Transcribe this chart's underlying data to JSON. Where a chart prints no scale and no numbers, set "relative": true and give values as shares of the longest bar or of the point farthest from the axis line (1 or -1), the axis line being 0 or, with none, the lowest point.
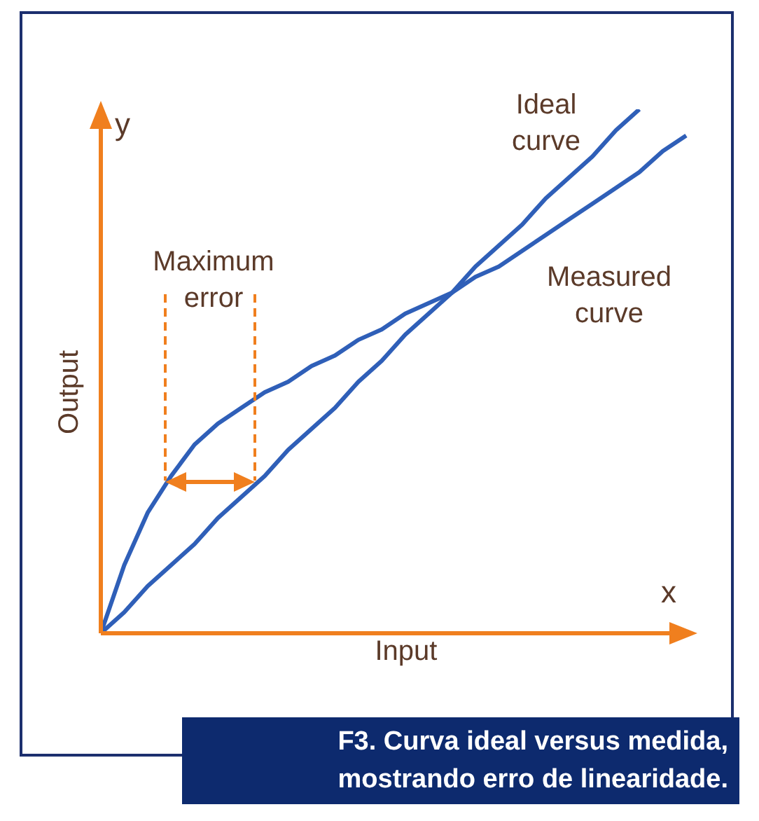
{
  "chart_data": {
    "type": "line",
    "relative": true,
    "xlabel": "Input",
    "ylabel": "Output",
    "legend": false,
    "grid": false,
    "marker": "none",
    "line_style": "solid",
    "categories": [
      null,
      null,
      null,
      null,
      null,
      null,
      null,
      null,
      null,
      null,
      null,
      null,
      null,
      null,
      null,
      null,
      null,
      null,
      null,
      null,
      null,
      null,
      null,
      null,
      null,
      null
    ],
    "series": [
      {
        "name": "Ideal curve",
        "color": "#2f5fb8",
        "values": [
          0,
          0.04,
          0.09,
          0.13,
          0.17,
          0.22,
          0.26,
          0.3,
          0.35,
          0.39,
          0.43,
          0.48,
          0.52,
          0.57,
          0.61,
          0.65,
          0.7,
          0.74,
          0.78,
          0.83,
          0.87,
          0.91,
          0.96,
          1,
          null,
          null
        ]
      },
      {
        "name": "Measured curve",
        "color": "#2f5fb8",
        "values": [
          0,
          0.13,
          0.23,
          0.3,
          0.36,
          0.4,
          0.43,
          0.46,
          0.48,
          0.51,
          0.53,
          0.56,
          0.58,
          0.61,
          0.63,
          0.65,
          0.68,
          0.7,
          0.73,
          0.76,
          0.79,
          0.82,
          0.85,
          0.88,
          0.92,
          0.95
        ]
      }
    ],
    "annotations": [
      "y",
      "x",
      "Maximum error",
      "F3. Curva ideal versus medida, mostrando erro de linearidade."
    ]
  }
}
